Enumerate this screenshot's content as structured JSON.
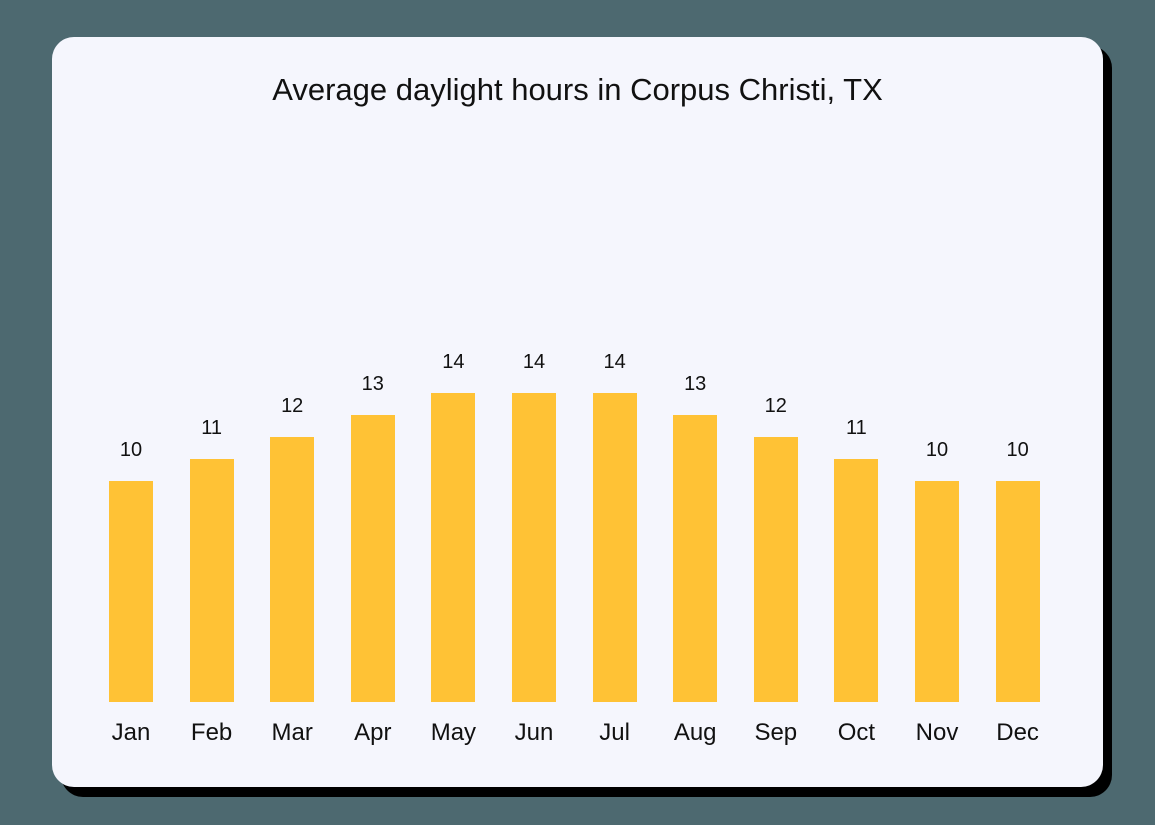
{
  "chart_data": {
    "type": "bar",
    "title": "Average daylight hours in Corpus Christi, TX",
    "xlabel": "",
    "ylabel": "",
    "categories": [
      "Jan",
      "Feb",
      "Mar",
      "Apr",
      "May",
      "Jun",
      "Jul",
      "Aug",
      "Sep",
      "Oct",
      "Nov",
      "Dec"
    ],
    "values": [
      10,
      11,
      12,
      13,
      14,
      14,
      14,
      13,
      12,
      11,
      10,
      10
    ],
    "ylim": [
      0,
      14
    ],
    "grid": false,
    "legend": "none",
    "bar_color": "#ffc235",
    "data_labels": true
  },
  "colors": {
    "background": "#4d6970",
    "card": "#f5f6fd",
    "bar": "#ffc235",
    "text": "#111111"
  }
}
